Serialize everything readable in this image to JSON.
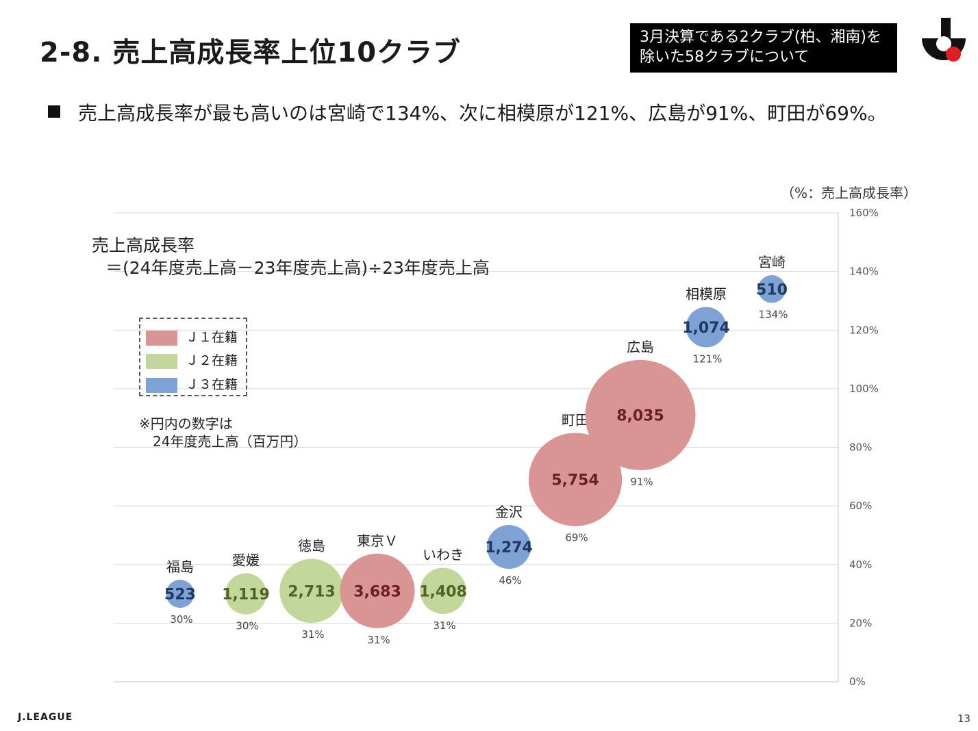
{
  "header": {
    "title": "2-8. 売上高成長率上位10クラブ",
    "note_line1": "3月決算である2クラブ(柏、湘南)を",
    "note_line2": "除いた58クラブについて"
  },
  "summary": "売上高成長率が最も高いのは宮崎で134%、次に相模原が121%、広島が91%、町田が69%。",
  "formula": {
    "line1": "売上高成長率",
    "line2": "＝(24年度売上高－23年度売上高)÷23年度売上高"
  },
  "legend": {
    "items": [
      {
        "label": "Ｊ１在籍",
        "color": "#d99594"
      },
      {
        "label": "Ｊ２在籍",
        "color": "#c4d79b"
      },
      {
        "label": "Ｊ３在籍",
        "color": "#7da2d3"
      }
    ]
  },
  "note": {
    "line1": "※円内の数字は",
    "line2": "24年度売上高（百万円）"
  },
  "footer": {
    "brand": "J.LEAGUE",
    "page": "13"
  },
  "colors": {
    "J1": "#d99594",
    "J2": "#c4d79b",
    "J3": "#7da2d3",
    "J1_text": "#6b1f1f",
    "J2_text": "#4f6228",
    "J3_text": "#1f3864"
  },
  "chart_data": {
    "type": "bubble",
    "unit_label": "（%：売上高成長率）",
    "ylim": [
      0,
      160
    ],
    "yticks": [
      "0%",
      "20%",
      "40%",
      "60%",
      "80%",
      "100%",
      "120%",
      "140%",
      "160%"
    ],
    "size_label": "24年度売上高（百万円）",
    "points": [
      {
        "club": "福島",
        "growth": 30,
        "sales": 523,
        "sales_label": "523",
        "pct_label": "30%",
        "division": "J3"
      },
      {
        "club": "愛媛",
        "growth": 30,
        "sales": 1119,
        "sales_label": "1,119",
        "pct_label": "30%",
        "division": "J2"
      },
      {
        "club": "徳島",
        "growth": 31,
        "sales": 2713,
        "sales_label": "2,713",
        "pct_label": "31%",
        "division": "J2"
      },
      {
        "club": "東京Ｖ",
        "growth": 31,
        "sales": 3683,
        "sales_label": "3,683",
        "pct_label": "31%",
        "division": "J1"
      },
      {
        "club": "いわき",
        "growth": 31,
        "sales": 1408,
        "sales_label": "1,408",
        "pct_label": "31%",
        "division": "J2"
      },
      {
        "club": "金沢",
        "growth": 46,
        "sales": 1274,
        "sales_label": "1,274",
        "pct_label": "46%",
        "division": "J3"
      },
      {
        "club": "町田",
        "growth": 69,
        "sales": 5754,
        "sales_label": "5,754",
        "pct_label": "69%",
        "division": "J1"
      },
      {
        "club": "広島",
        "growth": 91,
        "sales": 8035,
        "sales_label": "8,035",
        "pct_label": "91%",
        "division": "J1"
      },
      {
        "club": "相模原",
        "growth": 121,
        "sales": 1074,
        "sales_label": "1,074",
        "pct_label": "121%",
        "division": "J3"
      },
      {
        "club": "宮崎",
        "growth": 134,
        "sales": 510,
        "sales_label": "510",
        "pct_label": "134%",
        "division": "J3"
      }
    ]
  }
}
